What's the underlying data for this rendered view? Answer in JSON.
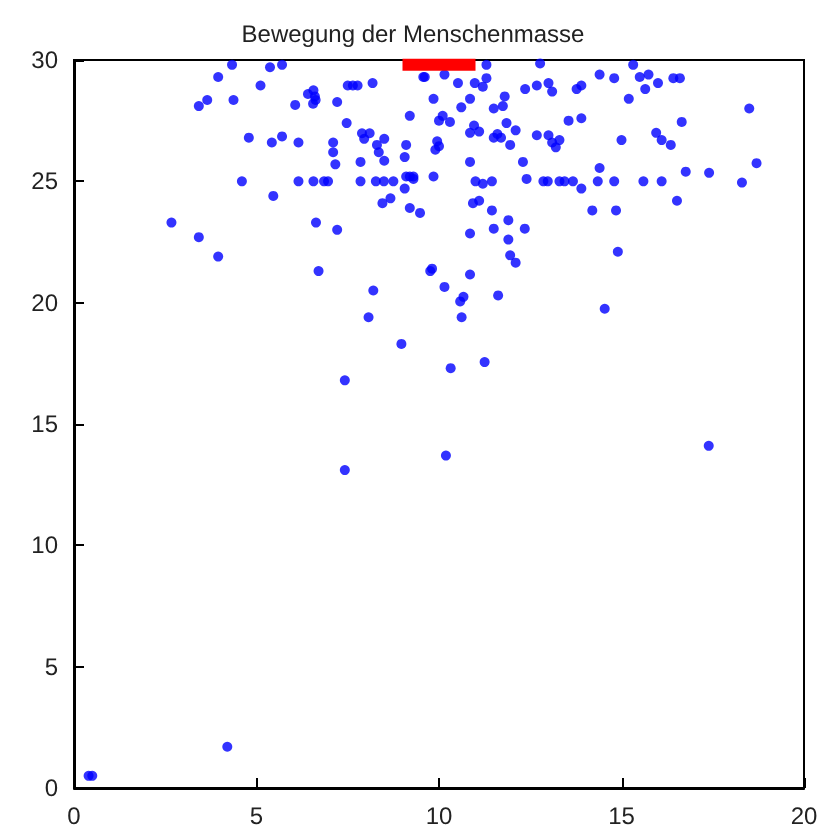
{
  "chart_data": {
    "type": "scatter",
    "title": "Bewegung der Menschenmasse",
    "xlim": [
      0,
      20
    ],
    "ylim": [
      0,
      30
    ],
    "xticks": [
      0,
      5,
      10,
      15,
      20
    ],
    "yticks": [
      0,
      5,
      10,
      15,
      20,
      25,
      30
    ],
    "series": [
      {
        "marker": "circle",
        "color": "#0000ff",
        "x": [
          4.33,
          3.95,
          5.37,
          5.7,
          3.42,
          3.65,
          4.37,
          5.11,
          6.06,
          6.41,
          6.56,
          6.6,
          6.55,
          6.62,
          7.21,
          7.5,
          7.64,
          7.77,
          8.18,
          7.47,
          4.79,
          5.42,
          5.7,
          6.15,
          7.1,
          7.1,
          7.16,
          7.89,
          7.95,
          8.1,
          8.5,
          8.3,
          8.35,
          7.85,
          8.5,
          4.6,
          6.15,
          6.56,
          6.85,
          6.96,
          7.85,
          8.27,
          8.49,
          8.75,
          5.46,
          8.67,
          8.45,
          9.06,
          9.2,
          9.3,
          9.2,
          9.48,
          2.67,
          3.42,
          3.95,
          6.63,
          7.21,
          6.7,
          8.2,
          8.07,
          9.1,
          9.2,
          9.57,
          9.85,
          9.81,
          9.61,
          10.15,
          11.3,
          12.77,
          10.52,
          10.98,
          11.2,
          11.3,
          10.85,
          10.61,
          11.8,
          12.36,
          12.68,
          13.0,
          13.1,
          13.77,
          13.9,
          14.4,
          14.8,
          15.32,
          15.5,
          15.74,
          15.65,
          16.0,
          16.42,
          16.6,
          15.2,
          18.5,
          10.0,
          10.1,
          10.3,
          9.95,
          9.9,
          10.0,
          10.96,
          10.85,
          11.1,
          11.5,
          11.75,
          11.5,
          11.6,
          11.7,
          11.85,
          12.1,
          11.95,
          12.68,
          13.0,
          13.1,
          13.2,
          13.3,
          13.55,
          13.9,
          15.0,
          15.95,
          16.1,
          16.35,
          16.65,
          9.06,
          9.1,
          9.3,
          9.85,
          10.85,
          12.3,
          14.4,
          18.7,
          16.76,
          17.4,
          18.3,
          11.0,
          11.2,
          11.45,
          12.4,
          12.86,
          12.98,
          13.3,
          13.44,
          13.67,
          14.35,
          14.8,
          15.6,
          16.1,
          13.9,
          16.52,
          10.93,
          11.1,
          11.45,
          11.9,
          14.2,
          14.85,
          11.5,
          12.35,
          11.9,
          10.85,
          11.95,
          12.1,
          14.9,
          9.76,
          10.85,
          10.15,
          10.67,
          10.58,
          11.62,
          14.54,
          10.62,
          8.97,
          7.42,
          10.32,
          11.25,
          7.42,
          10.19,
          17.39,
          0.4,
          0.5,
          4.2
        ],
        "values": [
          29.8,
          29.3,
          29.7,
          29.8,
          28.1,
          28.35,
          28.35,
          28.95,
          28.15,
          28.6,
          28.75,
          28.5,
          28.2,
          28.35,
          28.27,
          28.95,
          28.95,
          28.95,
          29.05,
          27.4,
          26.8,
          26.6,
          26.85,
          26.6,
          26.6,
          26.2,
          25.7,
          26.98,
          26.75,
          26.98,
          26.75,
          26.5,
          26.2,
          25.8,
          25.85,
          25.0,
          25.0,
          25.0,
          25.0,
          25.0,
          25.0,
          25.0,
          25.0,
          25.0,
          24.4,
          24.3,
          24.1,
          24.7,
          25.2,
          25.2,
          23.9,
          23.7,
          23.3,
          22.7,
          21.9,
          23.3,
          23.0,
          21.3,
          20.5,
          19.4,
          26.5,
          27.7,
          29.3,
          28.4,
          21.4,
          29.3,
          29.4,
          29.8,
          29.86,
          29.05,
          29.05,
          28.9,
          29.25,
          28.4,
          28.05,
          28.5,
          28.8,
          28.95,
          29.05,
          28.7,
          28.8,
          28.95,
          29.4,
          29.25,
          29.8,
          29.3,
          29.4,
          28.8,
          29.05,
          29.25,
          29.25,
          28.4,
          28.0,
          27.5,
          27.7,
          27.45,
          26.65,
          26.3,
          26.45,
          27.3,
          27.0,
          27.05,
          28.0,
          28.1,
          26.8,
          26.95,
          26.8,
          27.4,
          27.1,
          26.5,
          26.9,
          26.9,
          26.6,
          26.4,
          26.7,
          27.5,
          27.6,
          26.7,
          27.0,
          26.7,
          26.5,
          27.45,
          26.0,
          25.2,
          25.1,
          25.2,
          25.8,
          25.8,
          25.55,
          25.75,
          25.4,
          25.35,
          24.95,
          25.0,
          24.9,
          25.0,
          25.1,
          25.0,
          25.0,
          25.0,
          25.0,
          25.0,
          25.0,
          25.0,
          25.0,
          25.0,
          24.7,
          24.2,
          24.1,
          24.2,
          23.8,
          23.4,
          23.8,
          23.8,
          23.05,
          23.05,
          22.6,
          22.85,
          21.95,
          21.65,
          22.1,
          21.3,
          21.16,
          20.65,
          20.24,
          20.05,
          20.3,
          19.75,
          19.4,
          18.3,
          16.8,
          17.3,
          17.55,
          13.1,
          13.7,
          14.1,
          0.5,
          0.5,
          1.7
        ]
      },
      {
        "type": "line",
        "marker": "none",
        "color": "#ff0000",
        "line_style": "solid",
        "x": [
          9,
          11
        ],
        "values": [
          29.8,
          29.8
        ]
      }
    ]
  }
}
